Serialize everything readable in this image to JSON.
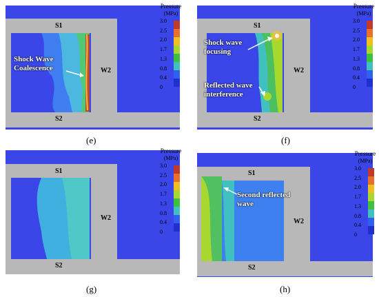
{
  "legend": {
    "title": "Pressure",
    "unit": "(MPa)",
    "ticks": [
      "3.0",
      "2.5",
      "2.0",
      "1.7",
      "1.3",
      "0.8",
      "0.4",
      "0"
    ],
    "colors": [
      "#c0392b",
      "#e8702a",
      "#f0c020",
      "#a8d830",
      "#40c040",
      "#40c0c0",
      "#3060f0",
      "#2030d0"
    ]
  },
  "labels": {
    "s1": "S1",
    "s2": "S2",
    "w2": "W2"
  },
  "panels": [
    {
      "id": "e",
      "caption": "(e)",
      "annotations": [
        "Shock Wave Coalescence"
      ]
    },
    {
      "id": "f",
      "caption": "(f)",
      "annotations": [
        "Shock wave focusing",
        "Reflected wave interference"
      ]
    },
    {
      "id": "g",
      "caption": "(g)",
      "annotations": []
    },
    {
      "id": "h",
      "caption": "(h)",
      "annotations": [
        "Second reflected wave"
      ]
    }
  ]
}
